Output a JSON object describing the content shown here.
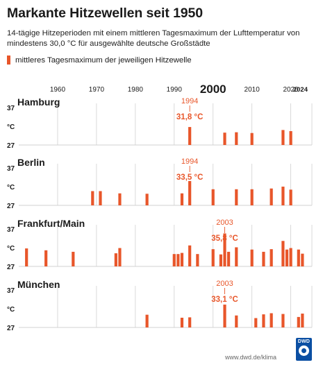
{
  "title": "Markante Hitzewellen seit 1950",
  "subtitle": "14-tägige Hitzeperioden mit einem mittleren Tagesmaximum der Lufttemperatur von mindestens 30,0 °C für ausgewählte deutsche Großstädte",
  "legend_label": "mittleres Tagesmaximum der jeweiligen Hitzewelle",
  "footer": "www.dwd.de/klima",
  "logo_text": "DWD",
  "colors": {
    "bar": "#e8562a",
    "grid": "#d0d0d0",
    "text": "#1a1a1a"
  },
  "chart_data": {
    "type": "bar",
    "x_ticks": [
      {
        "value": 1960,
        "label": "1960",
        "bold": false
      },
      {
        "value": 1970,
        "label": "1970",
        "bold": false
      },
      {
        "value": 1980,
        "label": "1980",
        "bold": false
      },
      {
        "value": 1990,
        "label": "1990",
        "bold": false
      },
      {
        "value": 2000,
        "label": "2000",
        "bold": true
      },
      {
        "value": 2010,
        "label": "2010",
        "bold": false
      },
      {
        "value": 2020,
        "label": "2020",
        "bold": false
      },
      {
        "value": 2024,
        "label": "2024",
        "bold": true
      }
    ],
    "xlim": [
      1950,
      2024
    ],
    "ylim": [
      27,
      37
    ],
    "y_tick_labels": [
      "37",
      "°C",
      "27"
    ],
    "grid": true,
    "panels": [
      {
        "city": "Hamburg",
        "peak": {
          "year": 1994,
          "year_label": "1994",
          "value_label": "31,8 °C"
        },
        "bars": [
          {
            "year": 1994,
            "value": 31.8
          },
          {
            "year": 2003,
            "value": 30.3
          },
          {
            "year": 2006,
            "value": 30.4
          },
          {
            "year": 2010,
            "value": 30.2
          },
          {
            "year": 2018,
            "value": 31.0
          },
          {
            "year": 2020,
            "value": 30.7
          }
        ]
      },
      {
        "city": "Berlin",
        "peak": {
          "year": 1994,
          "year_label": "1994",
          "value_label": "33,5 °C"
        },
        "bars": [
          {
            "year": 1969,
            "value": 30.8
          },
          {
            "year": 1971,
            "value": 30.8
          },
          {
            "year": 1976,
            "value": 30.2
          },
          {
            "year": 1983,
            "value": 30.1
          },
          {
            "year": 1992,
            "value": 30.2
          },
          {
            "year": 1994,
            "value": 33.5
          },
          {
            "year": 2000,
            "value": 31.3
          },
          {
            "year": 2006,
            "value": 31.3
          },
          {
            "year": 2010,
            "value": 31.3
          },
          {
            "year": 2015,
            "value": 31.5
          },
          {
            "year": 2018,
            "value": 32.0
          },
          {
            "year": 2020,
            "value": 31.2
          }
        ]
      },
      {
        "city": "Frankfurt/Main",
        "peak": {
          "year": 2003,
          "year_label": "2003",
          "value_label": "35,8 °C"
        },
        "bars": [
          {
            "year": 1952,
            "value": 31.8
          },
          {
            "year": 1957,
            "value": 31.3
          },
          {
            "year": 1964,
            "value": 30.9
          },
          {
            "year": 1975,
            "value": 30.5
          },
          {
            "year": 1976,
            "value": 31.9
          },
          {
            "year": 1990,
            "value": 30.3
          },
          {
            "year": 1991,
            "value": 30.3
          },
          {
            "year": 1992,
            "value": 30.6
          },
          {
            "year": 1994,
            "value": 32.6
          },
          {
            "year": 1996,
            "value": 30.3
          },
          {
            "year": 2000,
            "value": 31.6
          },
          {
            "year": 2002,
            "value": 30.2
          },
          {
            "year": 2003,
            "value": 35.8
          },
          {
            "year": 2004,
            "value": 30.9
          },
          {
            "year": 2006,
            "value": 32.1
          },
          {
            "year": 2010,
            "value": 31.5
          },
          {
            "year": 2013,
            "value": 30.9
          },
          {
            "year": 2015,
            "value": 31.6
          },
          {
            "year": 2018,
            "value": 33.8
          },
          {
            "year": 2019,
            "value": 31.5
          },
          {
            "year": 2020,
            "value": 31.9
          },
          {
            "year": 2022,
            "value": 31.5
          },
          {
            "year": 2023,
            "value": 30.4
          }
        ]
      },
      {
        "city": "München",
        "peak": {
          "year": 2003,
          "year_label": "2003",
          "value_label": "33,1 °C"
        },
        "bars": [
          {
            "year": 1983,
            "value": 30.4
          },
          {
            "year": 1992,
            "value": 29.6
          },
          {
            "year": 1994,
            "value": 29.7
          },
          {
            "year": 2003,
            "value": 33.1
          },
          {
            "year": 2006,
            "value": 30.2
          },
          {
            "year": 2011,
            "value": 29.5
          },
          {
            "year": 2013,
            "value": 30.5
          },
          {
            "year": 2015,
            "value": 30.8
          },
          {
            "year": 2018,
            "value": 30.6
          },
          {
            "year": 2022,
            "value": 29.8
          },
          {
            "year": 2023,
            "value": 30.7
          }
        ]
      }
    ]
  }
}
